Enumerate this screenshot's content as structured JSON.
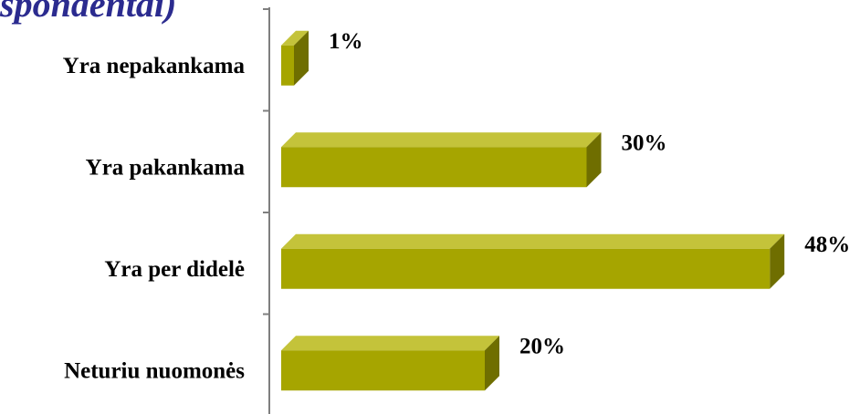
{
  "title_fragment": "spondentai)",
  "colors": {
    "title": "#2b2b8f",
    "bar_front": "#a6a500",
    "bar_top": "#c4c33a",
    "bar_side": "#6f6e00",
    "axis": "#7f7f7f"
  },
  "chart_data": {
    "type": "bar",
    "orientation": "horizontal",
    "style": "3d",
    "categories": [
      "Yra nepakankama",
      "Yra pakankama",
      "Yra per didelė",
      "Neturiu nuomonės"
    ],
    "values": [
      1,
      30,
      48,
      20
    ],
    "value_labels": [
      "1%",
      "30%",
      "48%",
      "20%"
    ],
    "unit": "%",
    "xlim": [
      0,
      48
    ],
    "grid": false,
    "legend": "none"
  }
}
